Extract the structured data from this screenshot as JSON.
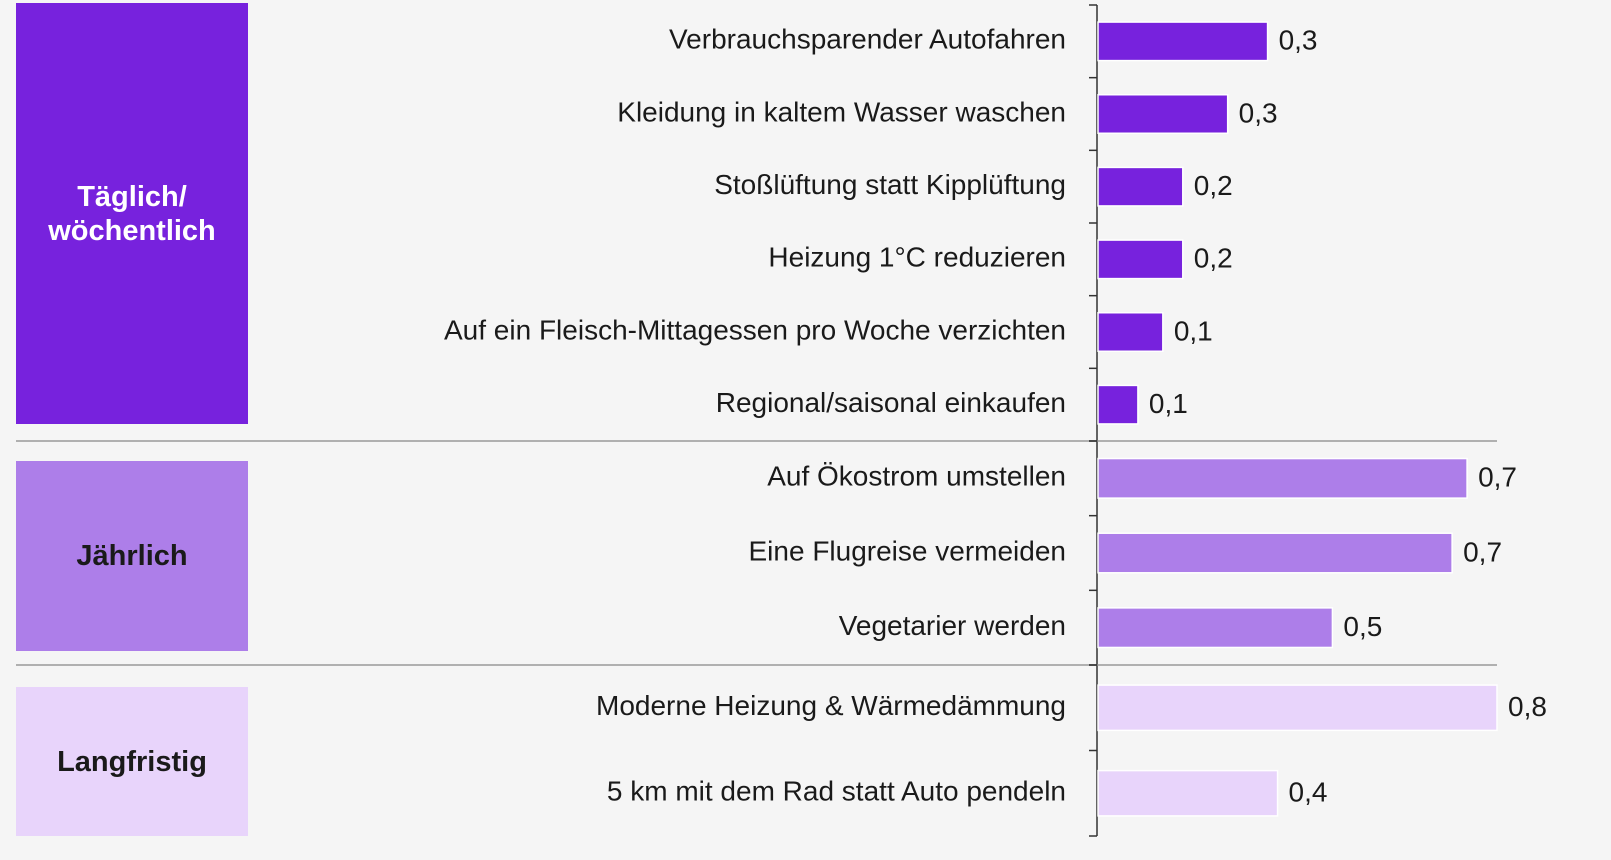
{
  "chart_data": {
    "type": "bar",
    "xlim": [
      0,
      0.8
    ],
    "groups": [
      {
        "name": "Täglich/ wöchentlich",
        "color": "#7722dd",
        "label_color": "#ffffff",
        "categories": [
          "Verbrauchsparender Autofahren",
          "Kleidung in kaltem Wasser waschen",
          "Stoßlüftung statt Kipplüftung",
          "Heizung 1°C reduzieren",
          "Auf ein Fleisch-Mittagessen pro Woche verzichten",
          "Regional/saisonal einkaufen"
        ],
        "values": [
          0.34,
          0.26,
          0.17,
          0.17,
          0.13,
          0.08
        ],
        "value_labels": [
          "0,3",
          "0,3",
          "0,2",
          "0,2",
          "0,1",
          "0,1"
        ]
      },
      {
        "name": "Jährlich",
        "color": "#ad7ee9",
        "label_color": "#1a1a1a",
        "categories": [
          "Auf Ökostrom umstellen",
          "Eine Flugreise vermeiden",
          "Vegetarier werden"
        ],
        "values": [
          0.74,
          0.71,
          0.47
        ],
        "value_labels": [
          "0,7",
          "0,7",
          "0,5"
        ]
      },
      {
        "name": "Langfristig",
        "color": "#e8d4fb",
        "label_color": "#1a1a1a",
        "categories": [
          "Moderne Heizung & Wärmedämmung",
          "5 km mit dem Rad statt Auto pendeln"
        ],
        "values": [
          0.8,
          0.36
        ],
        "value_labels": [
          "0,8",
          "0,4"
        ]
      }
    ]
  }
}
